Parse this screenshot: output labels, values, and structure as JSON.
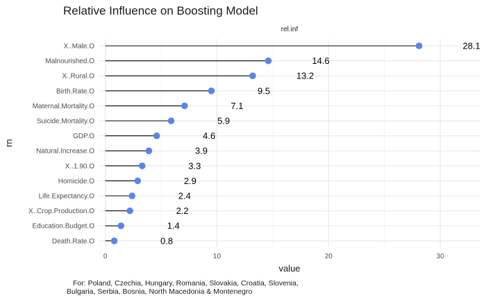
{
  "chart_data": {
    "type": "lollipop",
    "title": "Relative Influence on Boosting Model",
    "facet_label": "rel.inf",
    "xlabel": "value",
    "ylabel": "rn",
    "xlim": [
      -0.6,
      33.6
    ],
    "x_ticks": [
      0,
      10,
      20,
      30
    ],
    "grid": true,
    "point_color": "#5B84E8",
    "categories": [
      "X..Male.O",
      "Malnourished.O",
      "X..Rural.O",
      "Birth.Rate.O",
      "Maternal.Mortality.O",
      "Suicide.Mortality.O",
      "GDP.O",
      "Natural.Increase.O",
      "X..1.90.O",
      "Homicide.O",
      "Life.Expectancy.O",
      "X..Crop.Production.O",
      "Education.Budget.O",
      "Death.Rate.O"
    ],
    "values": [
      28.1,
      14.6,
      13.2,
      9.5,
      7.1,
      5.9,
      4.6,
      3.9,
      3.3,
      2.9,
      2.4,
      2.2,
      1.4,
      0.8
    ],
    "labels": [
      "28.1",
      "14.6",
      "13.2",
      "9.5",
      "7.1",
      "5.9",
      "4.6",
      "3.9",
      "3.3",
      "2.9",
      "2.4",
      "2.2",
      "1.4",
      "0.8"
    ]
  },
  "caption": {
    "line1": "For: Poland, Czechia, Hungary, Romania, Slovakia, Croatia, Slovenia,",
    "line2": "Bulgaria, Serbia, Bosnia, North Macedonia & Montenegro"
  }
}
